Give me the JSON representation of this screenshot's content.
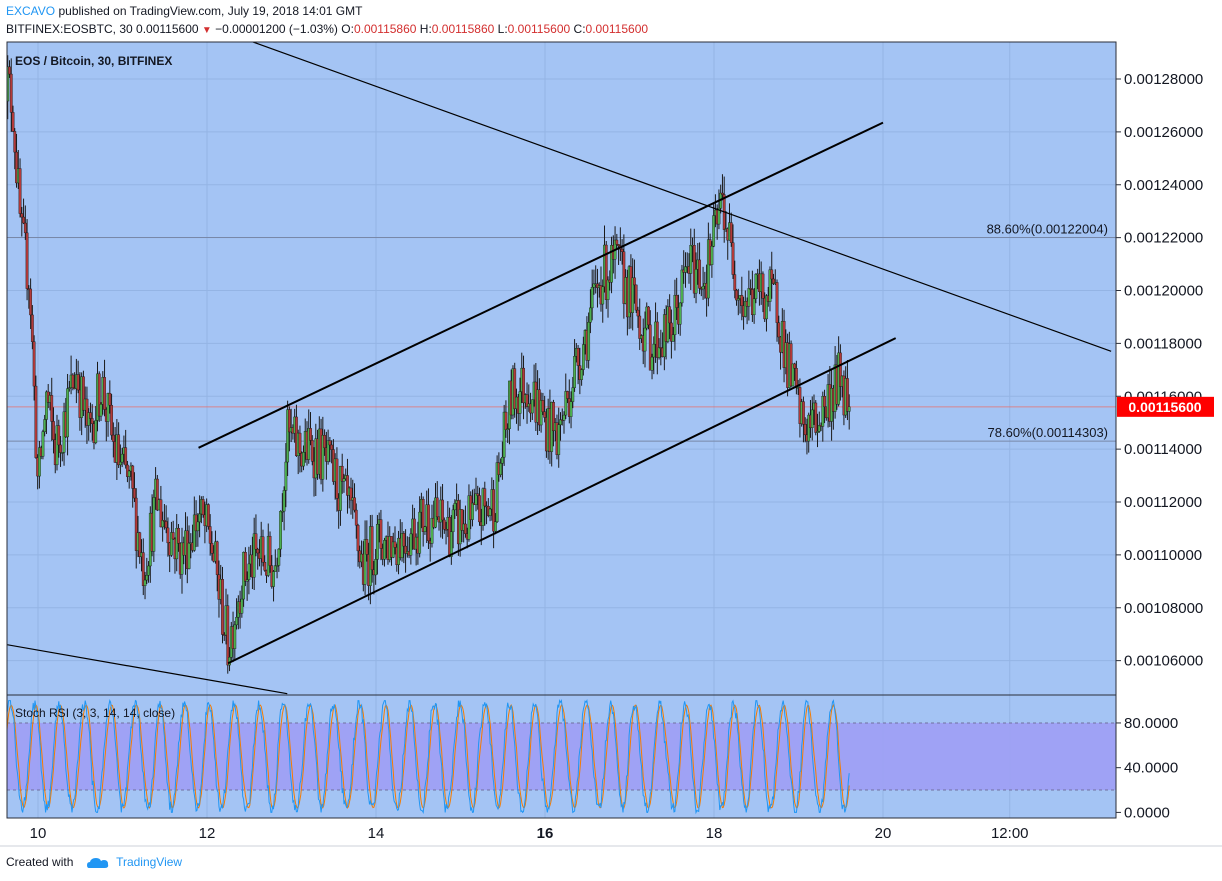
{
  "header": {
    "author": "EXCAVO",
    "published": "published on TradingView.com, July 19, 2018 14:01 GMT",
    "symbol": "BITFINEX:EOSBTC, 30",
    "last_price": "0.00115600",
    "change": "−0.00001200 (−1.03%)",
    "o_label": "O:",
    "o_value": "0.00115860",
    "h_label": "H:",
    "h_value": "0.00115860",
    "l_label": "L:",
    "l_value": "0.00115600",
    "c_label": "C:",
    "c_value": "0.00115600"
  },
  "chart_title": "EOS / Bitcoin, 30, BITFINEX",
  "price_tag": "0.00115600",
  "colors": {
    "background": "#a4c4f4",
    "up_candle": "#4caf50",
    "down_candle": "#b23a3a",
    "price_tag": "#ff0000",
    "rsi_band": "#9f9ff5",
    "rsi_k": "#2196f3",
    "rsi_d": "#f57c00"
  },
  "chart_data": {
    "type": "candlestick",
    "title": "EOS / Bitcoin, 30, BITFINEX",
    "y_ticks": [
      "0.00128000",
      "0.00126000",
      "0.00124000",
      "0.00122000",
      "0.00120000",
      "0.00118000",
      "0.00116000",
      "0.00114000",
      "0.00112000",
      "0.00110000",
      "0.00108000",
      "0.00106000"
    ],
    "x_ticks": [
      "10",
      "12",
      "14",
      "16",
      "18",
      "20",
      "12:00"
    ],
    "ylim": [
      0.001047,
      0.001294
    ],
    "price_series": [
      {
        "day": 9.6,
        "close": 0.001285
      },
      {
        "day": 9.7,
        "close": 0.00127
      },
      {
        "day": 9.8,
        "close": 0.00122
      },
      {
        "day": 9.9,
        "close": 0.001205
      },
      {
        "day": 10.0,
        "close": 0.001125
      },
      {
        "day": 10.1,
        "close": 0.00116
      },
      {
        "day": 10.2,
        "close": 0.00114
      },
      {
        "day": 10.3,
        "close": 0.00115
      },
      {
        "day": 10.45,
        "close": 0.00117
      },
      {
        "day": 10.6,
        "close": 0.001145
      },
      {
        "day": 10.75,
        "close": 0.001165
      },
      {
        "day": 10.9,
        "close": 0.00114
      },
      {
        "day": 11.1,
        "close": 0.001125
      },
      {
        "day": 11.25,
        "close": 0.001095
      },
      {
        "day": 11.4,
        "close": 0.00112
      },
      {
        "day": 11.55,
        "close": 0.00111
      },
      {
        "day": 11.7,
        "close": 0.0011
      },
      {
        "day": 11.9,
        "close": 0.001115
      },
      {
        "day": 12.05,
        "close": 0.001105
      },
      {
        "day": 12.25,
        "close": 0.001065
      },
      {
        "day": 12.4,
        "close": 0.00109
      },
      {
        "day": 12.6,
        "close": 0.0011
      },
      {
        "day": 12.8,
        "close": 0.001095
      },
      {
        "day": 12.95,
        "close": 0.001145
      },
      {
        "day": 13.1,
        "close": 0.00114
      },
      {
        "day": 13.3,
        "close": 0.00114
      },
      {
        "day": 13.5,
        "close": 0.00113
      },
      {
        "day": 13.7,
        "close": 0.001115
      },
      {
        "day": 13.85,
        "close": 0.001095
      },
      {
        "day": 14.0,
        "close": 0.001105
      },
      {
        "day": 14.2,
        "close": 0.001105
      },
      {
        "day": 14.4,
        "close": 0.001108
      },
      {
        "day": 14.6,
        "close": 0.001115
      },
      {
        "day": 14.85,
        "close": 0.00111
      },
      {
        "day": 15.1,
        "close": 0.001112
      },
      {
        "day": 15.4,
        "close": 0.00112
      },
      {
        "day": 15.6,
        "close": 0.00116
      },
      {
        "day": 15.8,
        "close": 0.001165
      },
      {
        "day": 16.0,
        "close": 0.00115
      },
      {
        "day": 16.15,
        "close": 0.001145
      },
      {
        "day": 16.35,
        "close": 0.00117
      },
      {
        "day": 16.5,
        "close": 0.001185
      },
      {
        "day": 16.65,
        "close": 0.001205
      },
      {
        "day": 16.85,
        "close": 0.00121
      },
      {
        "day": 17.05,
        "close": 0.001195
      },
      {
        "day": 17.25,
        "close": 0.00118
      },
      {
        "day": 17.5,
        "close": 0.001185
      },
      {
        "day": 17.7,
        "close": 0.00121
      },
      {
        "day": 17.9,
        "close": 0.001205
      },
      {
        "day": 18.0,
        "close": 0.00122
      },
      {
        "day": 18.1,
        "close": 0.001235
      },
      {
        "day": 18.2,
        "close": 0.001215
      },
      {
        "day": 18.35,
        "close": 0.001195
      },
      {
        "day": 18.55,
        "close": 0.0012
      },
      {
        "day": 18.75,
        "close": 0.001195
      },
      {
        "day": 18.85,
        "close": 0.001175
      },
      {
        "day": 18.95,
        "close": 0.001162
      },
      {
        "day": 19.05,
        "close": 0.001148
      },
      {
        "day": 19.2,
        "close": 0.00115
      },
      {
        "day": 19.35,
        "close": 0.001158
      },
      {
        "day": 19.5,
        "close": 0.001168
      },
      {
        "day": 19.6,
        "close": 0.001156
      }
    ],
    "trend_lines": [
      {
        "x1": 11.9,
        "y1": 0.0011405,
        "x2": 20.0,
        "y2": 0.0012635
      },
      {
        "x1": 12.25,
        "y1": 0.001059,
        "x2": 20.15,
        "y2": 0.001182
      },
      {
        "x1": 11.85,
        "y1": 0.001302,
        "x2": 22.7,
        "y2": 0.001177
      },
      {
        "x1": 9.55,
        "y1": 0.0010665,
        "x2": 12.95,
        "y2": 0.0010475
      }
    ],
    "fib_levels": [
      {
        "label": "88.60%(0.00122004)",
        "value": 0.00122004
      },
      {
        "label": "78.60%(0.00114303)",
        "value": 0.00114303
      }
    ],
    "last_price": 0.001156,
    "indicator": {
      "name": "Stoch RSI (3, 3, 14, 14, close)",
      "y_ticks": [
        "80.0000",
        "40.0000",
        "0.0000"
      ],
      "band": [
        20,
        80
      ],
      "ylim": [
        -5,
        105
      ]
    }
  },
  "footer": {
    "created_with": "Created with",
    "brand": "TradingView"
  }
}
